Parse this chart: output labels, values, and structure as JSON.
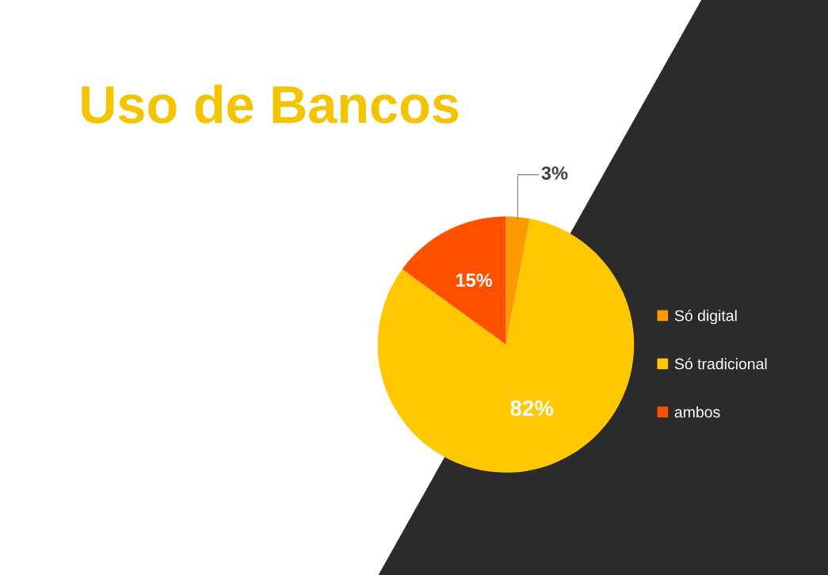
{
  "chart_data": {
    "type": "pie",
    "title": "Uso de Bancos",
    "categories": [
      "Só digital",
      "Só tradicional",
      "ambos"
    ],
    "values": [
      3,
      82,
      15
    ],
    "colors": [
      "#ff9900",
      "#ffc800",
      "#ff5000"
    ],
    "value_labels": [
      "3%",
      "82%",
      "15%"
    ],
    "legend": "right"
  }
}
